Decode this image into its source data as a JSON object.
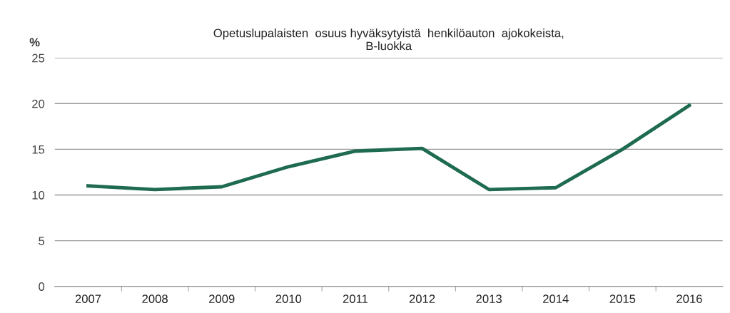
{
  "chart_data": {
    "type": "line",
    "title": "Opetuslupalaisten  osuus hyväksytyistä  henkilöauton  ajokokeista,\nB-luokka",
    "ylabel": "%",
    "categories": [
      "2007",
      "2008",
      "2009",
      "2010",
      "2011",
      "2012",
      "2013",
      "2014",
      "2015",
      "2016"
    ],
    "series": [
      {
        "color": "#1e6b4f",
        "values": [
          11.0,
          10.6,
          10.9,
          13.1,
          14.8,
          15.1,
          10.6,
          10.8,
          15.0,
          19.8
        ]
      }
    ],
    "ylim": [
      0,
      25
    ],
    "yticks": [
      0,
      5,
      10,
      15,
      20,
      25
    ],
    "grid": "y",
    "legend": false,
    "marker": "none",
    "line_style": "solid"
  }
}
